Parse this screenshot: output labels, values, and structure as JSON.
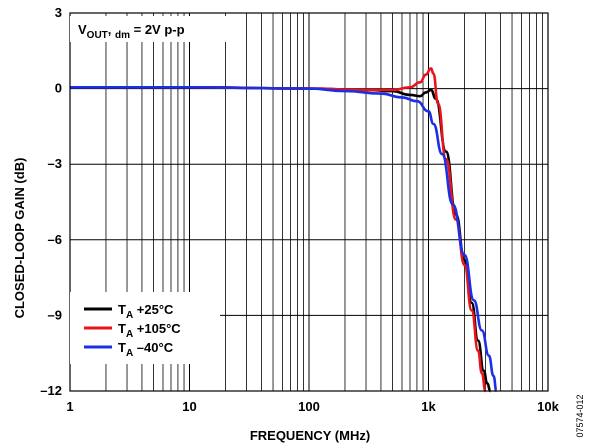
{
  "figure_code": "07574-012",
  "chart_data": {
    "type": "line",
    "xlabel": "FREQUENCY (MHz)",
    "ylabel": "CLOSED-LOOP GAIN (dB)",
    "xscale": "log",
    "xlim": [
      1,
      10000
    ],
    "ylim": [
      -12,
      3
    ],
    "xticks": [
      1,
      10,
      100,
      1000,
      10000
    ],
    "xtick_labels": [
      "1",
      "10",
      "100",
      "1k",
      "10k"
    ],
    "yticks": [
      3,
      0,
      -3,
      -6,
      -9,
      -12
    ],
    "ytick_labels": [
      "3",
      "0",
      "–3",
      "–6",
      "–9",
      "–12"
    ],
    "grid": true,
    "legend_position": "bottom-left",
    "annotation": {
      "v": "V",
      "sub": "OUT",
      "mid": ", ",
      "sub2": "dm",
      "rest": " = 2V p-p"
    },
    "series": [
      {
        "name": "T_A +25°C",
        "legend_main": "T",
        "legend_sub": "A",
        "legend_rest": " +25°C",
        "color": "#000000",
        "x": [
          1,
          10,
          100,
          300,
          500,
          700,
          850,
          950,
          1050,
          1150,
          1400,
          1700,
          2000,
          2300,
          2600,
          2900,
          3100,
          3300
        ],
        "y": [
          0.05,
          0.05,
          0.0,
          -0.05,
          -0.1,
          -0.25,
          -0.3,
          -0.15,
          -0.05,
          -0.4,
          -2.5,
          -5.0,
          -6.8,
          -8.5,
          -10.0,
          -11.2,
          -11.7,
          -12.0
        ]
      },
      {
        "name": "T_A +105°C",
        "legend_main": "T",
        "legend_sub": "A",
        "legend_rest": " +105°C",
        "color": "#e8141b",
        "x": [
          1,
          10,
          100,
          300,
          500,
          700,
          850,
          950,
          1050,
          1100,
          1200,
          1400,
          1700,
          2000,
          2300,
          2600,
          2800,
          3000
        ],
        "y": [
          0.05,
          0.05,
          0.0,
          -0.05,
          -0.05,
          0.05,
          0.25,
          0.55,
          0.8,
          0.6,
          -0.6,
          -2.8,
          -5.2,
          -7.0,
          -8.8,
          -10.4,
          -11.3,
          -12.0
        ]
      },
      {
        "name": "T_A –40°C",
        "legend_main": "T",
        "legend_sub": "A",
        "legend_rest": " –40°C",
        "color": "#1c2fe6",
        "x": [
          1,
          10,
          100,
          200,
          400,
          600,
          800,
          1000,
          1100,
          1300,
          1600,
          2000,
          2400,
          2800,
          3200,
          3500,
          3700
        ],
        "y": [
          0.05,
          0.05,
          0.0,
          -0.1,
          -0.2,
          -0.35,
          -0.5,
          -0.9,
          -1.4,
          -2.6,
          -4.6,
          -6.6,
          -8.4,
          -9.6,
          -10.6,
          -11.4,
          -12.0
        ]
      }
    ]
  }
}
